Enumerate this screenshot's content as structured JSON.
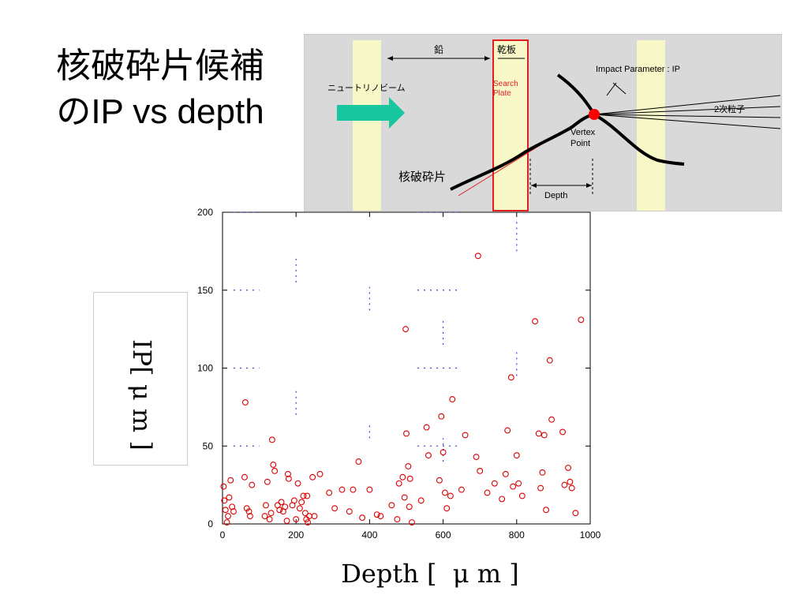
{
  "title": {
    "line1": "核破砕片候補",
    "line2": "のIP vs depth"
  },
  "diagram": {
    "lead_label": "鉛",
    "emulsion_label": "乾板",
    "beam_label": "ニュートリノビーム",
    "search_plate_line1": "Search",
    "search_plate_line2": "Plate",
    "ip_label": "Impact Parameter : IP",
    "secondary_label": "2次粒子",
    "vertex_line1": "Vertex",
    "vertex_line2": "Point",
    "fragment_label": "核破砕片",
    "depth_label": "Depth",
    "colors": {
      "background": "#d9d9d9",
      "plate": "#f7f7c8",
      "search": "#e02020",
      "arrow": "#18c6a0",
      "vertex": "#ff0000"
    }
  },
  "chart_data": {
    "type": "scatter",
    "xlabel": "Depth [  μ m ]",
    "ylabel": "IP[ μ m ]",
    "xlim": [
      0,
      1000
    ],
    "ylim": [
      0,
      200
    ],
    "xticks": [
      "0",
      "200",
      "400",
      "600",
      "800",
      "1000"
    ],
    "yticks": [
      "0",
      "50",
      "100",
      "150",
      "200"
    ],
    "grid": false,
    "marker_color": "#dd0000",
    "series": [
      {
        "name": "",
        "points": [
          [
            3,
            24
          ],
          [
            5,
            15
          ],
          [
            8,
            9
          ],
          [
            12,
            1
          ],
          [
            15,
            5
          ],
          [
            18,
            17
          ],
          [
            22,
            28
          ],
          [
            26,
            11
          ],
          [
            30,
            8
          ],
          [
            60,
            30
          ],
          [
            62,
            78
          ],
          [
            66,
            10
          ],
          [
            72,
            8
          ],
          [
            75,
            5
          ],
          [
            80,
            25
          ],
          [
            115,
            5
          ],
          [
            118,
            12
          ],
          [
            122,
            27
          ],
          [
            128,
            3
          ],
          [
            132,
            7
          ],
          [
            135,
            54
          ],
          [
            138,
            38
          ],
          [
            142,
            34
          ],
          [
            150,
            12
          ],
          [
            155,
            9
          ],
          [
            160,
            14
          ],
          [
            165,
            8
          ],
          [
            170,
            11
          ],
          [
            175,
            2
          ],
          [
            178,
            32
          ],
          [
            180,
            29
          ],
          [
            190,
            12
          ],
          [
            195,
            15
          ],
          [
            200,
            3
          ],
          [
            205,
            26
          ],
          [
            210,
            10
          ],
          [
            215,
            14
          ],
          [
            220,
            18
          ],
          [
            225,
            7
          ],
          [
            228,
            3
          ],
          [
            230,
            18
          ],
          [
            232,
            1
          ],
          [
            236,
            5
          ],
          [
            245,
            30
          ],
          [
            250,
            5
          ],
          [
            265,
            32
          ],
          [
            290,
            20
          ],
          [
            305,
            10
          ],
          [
            325,
            22
          ],
          [
            345,
            8
          ],
          [
            355,
            22
          ],
          [
            370,
            40
          ],
          [
            380,
            4
          ],
          [
            400,
            22
          ],
          [
            420,
            6
          ],
          [
            430,
            5
          ],
          [
            460,
            12
          ],
          [
            475,
            3
          ],
          [
            480,
            26
          ],
          [
            490,
            30
          ],
          [
            495,
            17
          ],
          [
            498,
            125
          ],
          [
            500,
            58
          ],
          [
            505,
            37
          ],
          [
            508,
            11
          ],
          [
            510,
            29
          ],
          [
            515,
            1
          ],
          [
            540,
            15
          ],
          [
            555,
            62
          ],
          [
            560,
            44
          ],
          [
            590,
            28
          ],
          [
            595,
            69
          ],
          [
            600,
            46
          ],
          [
            605,
            20
          ],
          [
            610,
            10
          ],
          [
            620,
            18
          ],
          [
            625,
            80
          ],
          [
            650,
            22
          ],
          [
            660,
            57
          ],
          [
            690,
            43
          ],
          [
            695,
            172
          ],
          [
            700,
            34
          ],
          [
            720,
            20
          ],
          [
            740,
            26
          ],
          [
            760,
            16
          ],
          [
            770,
            32
          ],
          [
            775,
            60
          ],
          [
            785,
            94
          ],
          [
            790,
            24
          ],
          [
            800,
            44
          ],
          [
            805,
            26
          ],
          [
            815,
            18
          ],
          [
            850,
            130
          ],
          [
            860,
            58
          ],
          [
            865,
            23
          ],
          [
            870,
            33
          ],
          [
            875,
            57
          ],
          [
            880,
            9
          ],
          [
            890,
            105
          ],
          [
            895,
            67
          ],
          [
            925,
            59
          ],
          [
            930,
            25
          ],
          [
            940,
            36
          ],
          [
            945,
            27
          ],
          [
            950,
            23
          ],
          [
            960,
            7
          ],
          [
            975,
            131
          ]
        ]
      }
    ]
  }
}
